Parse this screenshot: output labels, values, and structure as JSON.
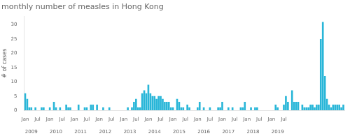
{
  "chart_data": {
    "type": "bar",
    "title": "monthly number of measles in Hong Kong",
    "ylabel": "# of cases",
    "color": "#29b6d8",
    "ylim": [
      0,
      33
    ],
    "yticks": [
      0,
      5,
      10,
      15,
      20,
      25,
      30
    ],
    "grid": false,
    "categories": [
      "Jan",
      null,
      null,
      null,
      null,
      null,
      "Jul",
      null,
      null,
      null,
      null,
      null,
      "Jan",
      null,
      null,
      null,
      null,
      null,
      "Jul",
      null,
      null,
      null,
      null,
      null,
      "Jan",
      null,
      null,
      null,
      null,
      null,
      "Jul",
      null,
      null,
      null,
      null,
      null,
      "Jan",
      null,
      null,
      null,
      null,
      null,
      "Jul",
      null,
      null,
      null,
      null,
      null,
      "Jan",
      null,
      null,
      null,
      null,
      null,
      "Jul",
      null,
      null,
      null,
      null,
      null,
      "Jan",
      null,
      null,
      null,
      null,
      null,
      "Jul",
      null,
      null,
      null,
      null,
      null,
      "Jan",
      null,
      null,
      null,
      null,
      null,
      "Jul",
      null,
      null,
      null,
      null,
      null,
      "Jan",
      null,
      null,
      null,
      null,
      null,
      "Jul",
      null,
      null,
      null,
      null,
      null,
      "Jan",
      null,
      null,
      null,
      null,
      null,
      "Jul",
      null,
      null,
      null,
      null,
      null,
      "Jan",
      null,
      null,
      null,
      null,
      null,
      "Jul",
      null,
      null,
      null,
      null,
      null,
      "Jan",
      null,
      null,
      null,
      null,
      null,
      "Jul",
      null,
      null,
      null,
      null,
      null,
      null,
      null,
      null,
      null,
      null,
      null,
      null,
      null,
      null,
      null,
      null,
      null,
      null,
      null,
      null,
      null,
      null,
      null,
      null,
      null,
      null,
      null,
      null,
      null
    ],
    "year_labels": [
      null,
      null,
      null,
      "2009",
      null,
      null,
      null,
      null,
      null,
      null,
      null,
      null,
      null,
      null,
      null,
      "2010",
      null,
      null,
      null,
      null,
      null,
      null,
      null,
      null,
      null,
      null,
      null,
      "2011",
      null,
      null,
      null,
      null,
      null,
      null,
      null,
      null,
      null,
      null,
      null,
      "2012",
      null,
      null,
      null,
      null,
      null,
      null,
      null,
      null,
      null,
      null,
      null,
      "2013",
      null,
      null,
      null,
      null,
      null,
      null,
      null,
      null,
      null,
      null,
      null,
      "2014",
      null,
      null,
      null,
      null,
      null,
      null,
      null,
      null,
      null,
      null,
      null,
      "2015",
      null,
      null,
      null,
      null,
      null,
      null,
      null,
      null,
      null,
      null,
      null,
      "2016",
      null,
      null,
      null,
      null,
      null,
      null,
      null,
      null,
      null,
      null,
      null,
      "2017",
      null,
      null,
      null,
      null,
      null,
      null,
      null,
      null,
      null,
      null,
      null,
      "2018",
      null,
      null,
      null,
      null,
      null,
      null,
      null,
      null,
      null,
      null,
      null,
      "2019",
      null,
      null,
      null,
      null,
      null,
      null,
      null,
      null,
      null,
      null,
      null,
      null,
      null,
      null,
      null,
      null,
      null,
      null,
      null,
      null,
      null,
      null,
      null,
      null,
      null,
      null,
      null,
      null,
      null,
      null,
      null,
      null
    ],
    "values": [
      6,
      4,
      1,
      1,
      0,
      1,
      0,
      0,
      1,
      1,
      0,
      0,
      1,
      0,
      3,
      1,
      0,
      1,
      0,
      0,
      2,
      1,
      1,
      0,
      0,
      0,
      2,
      0,
      0,
      1,
      1,
      0,
      2,
      2,
      0,
      2,
      0,
      0,
      1,
      0,
      0,
      1,
      0,
      0,
      0,
      0,
      0,
      0,
      0,
      0,
      1,
      0,
      1,
      3,
      4,
      1,
      1,
      6,
      7,
      6,
      9,
      6,
      5,
      5,
      4,
      5,
      5,
      4,
      3,
      3,
      3,
      1,
      1,
      0,
      4,
      3,
      1,
      1,
      0,
      2,
      1,
      0,
      0,
      0,
      1,
      3,
      0,
      1,
      0,
      0,
      1,
      0,
      0,
      0,
      1,
      1,
      3,
      0,
      0,
      1,
      0,
      1,
      0,
      0,
      0,
      1,
      1,
      3,
      0,
      0,
      1,
      0,
      1,
      1,
      0,
      0,
      0,
      0,
      0,
      0,
      0,
      0,
      2,
      1,
      0,
      0,
      2,
      5,
      3,
      0,
      7,
      3,
      3,
      3,
      0,
      2,
      1,
      1,
      1,
      2,
      2,
      1,
      2,
      2,
      25,
      31,
      12,
      4,
      2,
      1,
      2,
      2,
      2,
      2,
      1,
      2
    ]
  }
}
